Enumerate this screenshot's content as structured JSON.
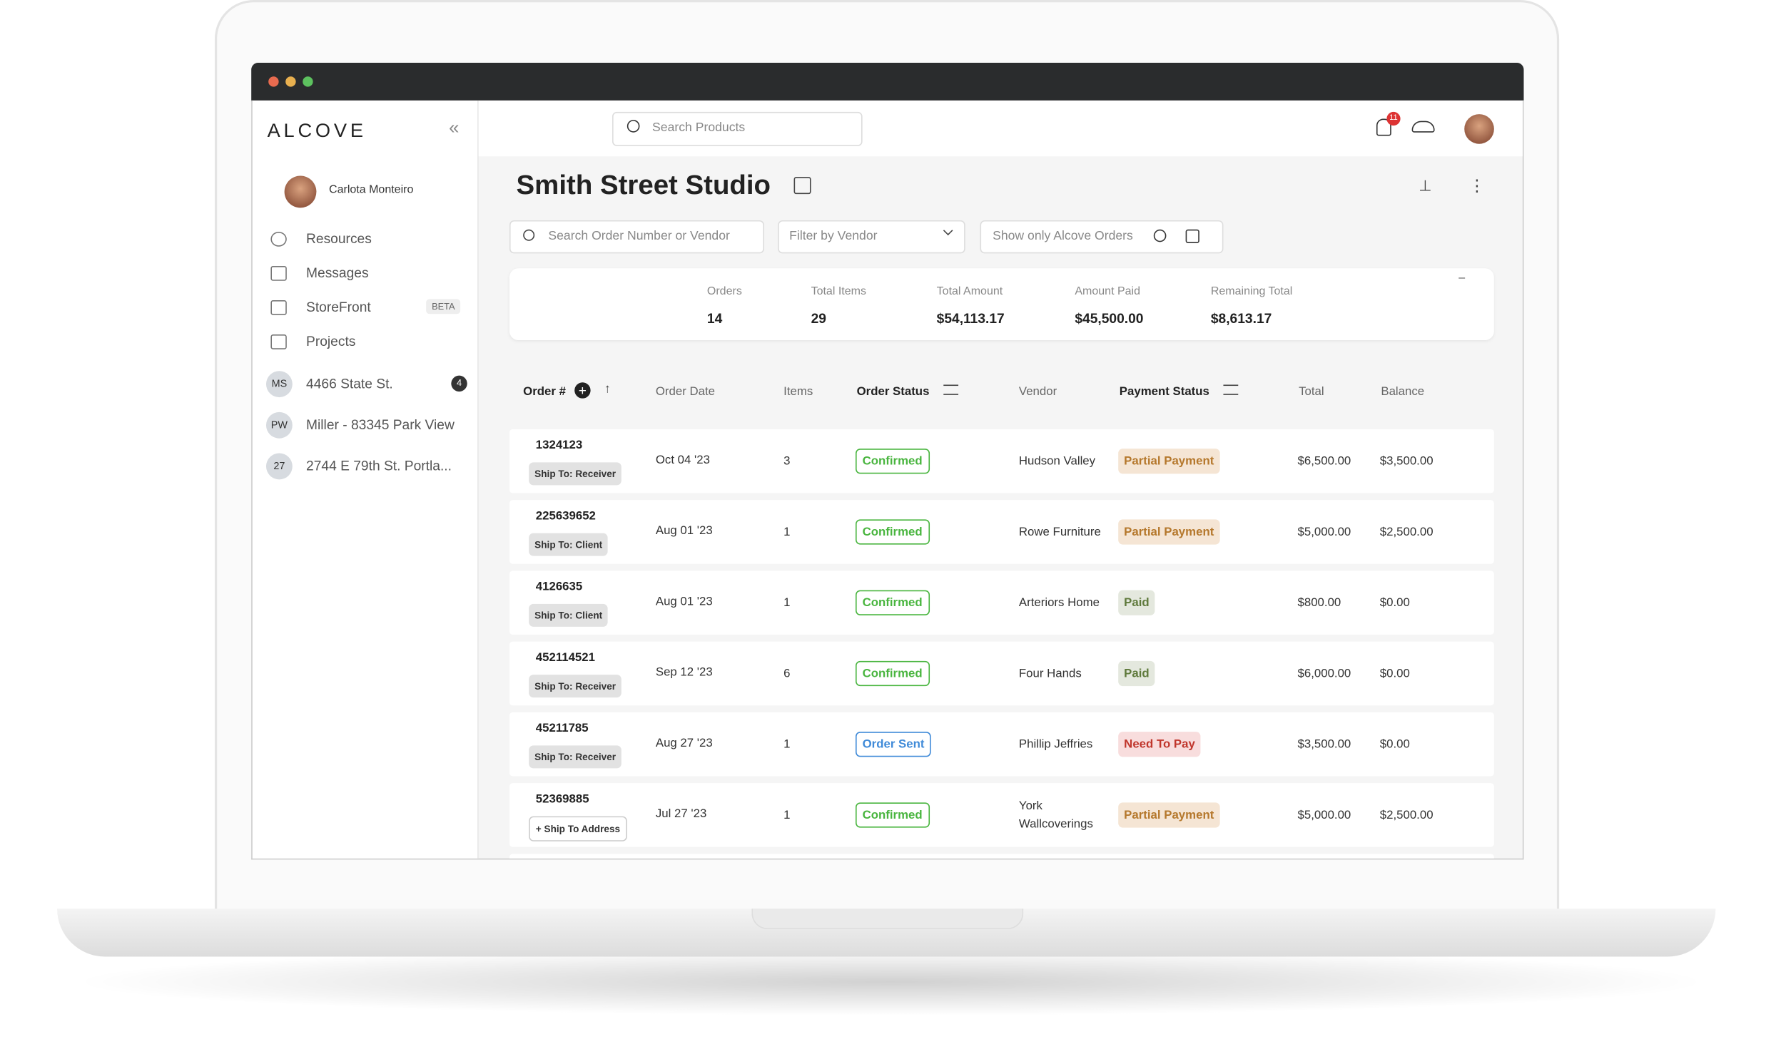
{
  "sidebar": {
    "logo": "ALCOVE",
    "user": "Carlota Monteiro",
    "nav": [
      {
        "label": "Resources"
      },
      {
        "label": "Messages"
      },
      {
        "label": "StoreFront",
        "badge": "BETA"
      },
      {
        "label": "Projects"
      }
    ],
    "projects": [
      {
        "initials": "MS",
        "name": "4466 State St.",
        "count": 4
      },
      {
        "initials": "PW",
        "name": "Miller - 83345 Park View"
      },
      {
        "initials": "27",
        "name": "2744 E 79th St. Portla..."
      }
    ]
  },
  "topbar": {
    "search_placeholder": "Search Products",
    "notifications": 11
  },
  "page": {
    "title": "Smith Street Studio",
    "order_search_placeholder": "Search Order Number or Vendor",
    "vendor_filter": "Filter by Vendor",
    "alcove_toggle": "Show only Alcove Orders"
  },
  "summary": [
    {
      "label": "Orders",
      "value": 14
    },
    {
      "label": "Total Items",
      "value": 29
    },
    {
      "label": "Total Amount",
      "value": "$54,113.17"
    },
    {
      "label": "Amount Paid",
      "value": "$45,500.00"
    },
    {
      "label": "Remaining Total",
      "value": "$8,613.17"
    }
  ],
  "table": {
    "columns": [
      "Order #",
      "Order Date",
      "Items",
      "Order Status",
      "Vendor",
      "Payment Status",
      "Total",
      "Balance"
    ],
    "rows": [
      {
        "order": "1324123",
        "ship": "Ship To: Receiver",
        "date": "Oct 04 '23",
        "items": 3,
        "status": "Confirmed",
        "status_color": "#49b53f",
        "vendor": "Hudson Valley",
        "payment": "Partial Payment",
        "payment_color": "#b5782c",
        "payment_bg": "#f5e5d4",
        "total": "$6,500.00",
        "balance": "$3,500.00"
      },
      {
        "order": "225639652",
        "ship": "Ship To: Client",
        "date": "Aug 01 '23",
        "items": 1,
        "status": "Confirmed",
        "status_color": "#49b53f",
        "vendor": "Rowe Furniture",
        "payment": "Partial Payment",
        "payment_color": "#b5782c",
        "payment_bg": "#f5e5d4",
        "total": "$5,000.00",
        "balance": "$2,500.00"
      },
      {
        "order": "4126635",
        "ship": "Ship To: Client",
        "date": "Aug 01 '23",
        "items": 1,
        "status": "Confirmed",
        "status_color": "#49b53f",
        "vendor": "Arteriors Home",
        "payment": "Paid",
        "payment_color": "#5f7a3c",
        "payment_bg": "#e4e8de",
        "total": "$800.00",
        "balance": "$0.00"
      },
      {
        "order": "452114521",
        "ship": "Ship To: Receiver",
        "date": "Sep 12 '23",
        "items": 6,
        "status": "Confirmed",
        "status_color": "#49b53f",
        "vendor": "Four Hands",
        "payment": "Paid",
        "payment_color": "#5f7a3c",
        "payment_bg": "#e4e8de",
        "total": "$6,000.00",
        "balance": "$0.00"
      },
      {
        "order": "45211785",
        "ship": "Ship To: Receiver",
        "date": "Aug 27 '23",
        "items": 1,
        "status": "Order Sent",
        "status_color": "#3f8ad8",
        "vendor": "Phillip Jeffries",
        "payment": "Need To Pay",
        "payment_color": "#c0362c",
        "payment_bg": "#f8dddd",
        "total": "$3,500.00",
        "balance": "$0.00"
      },
      {
        "order": "52369885",
        "ship": "+ Ship To Address",
        "date": "Jul 27 '23",
        "items": 1,
        "status": "Confirmed",
        "status_color": "#49b53f",
        "vendor": "York Wallcoverings",
        "payment": "Partial Payment",
        "payment_color": "#b5782c",
        "payment_bg": "#f5e5d4",
        "total": "$5,000.00",
        "balance": "$2,500.00"
      }
    ]
  }
}
